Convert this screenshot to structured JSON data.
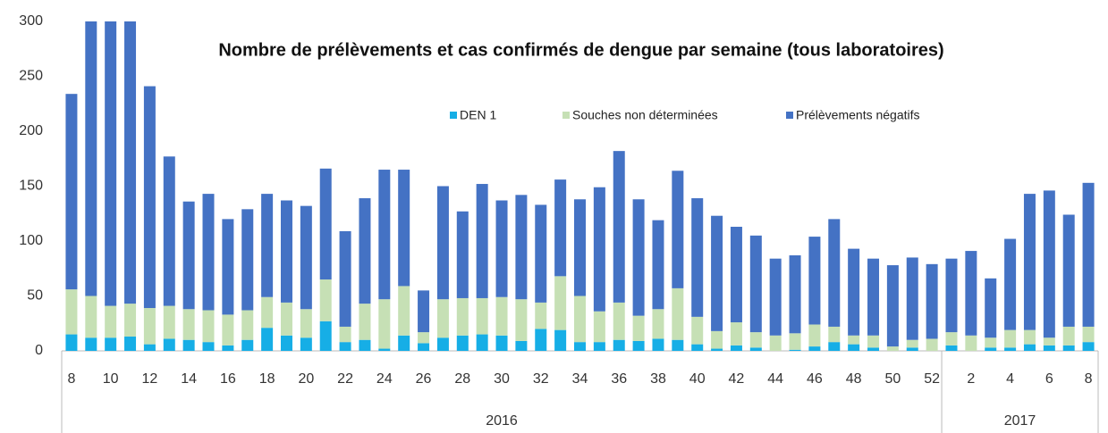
{
  "chart_data": {
    "type": "stacked_bar",
    "title": "Nombre de prélèvements et cas confirmés de dengue par semaine (tous laboratoires)",
    "categories": [
      "8",
      null,
      "10",
      null,
      "12",
      null,
      "14",
      null,
      "16",
      null,
      "18",
      null,
      "20",
      null,
      "22",
      null,
      "24",
      null,
      "26",
      null,
      "28",
      null,
      "30",
      null,
      "32",
      null,
      "34",
      null,
      "36",
      null,
      "38",
      null,
      "40",
      null,
      "42",
      null,
      "44",
      null,
      "46",
      null,
      "48",
      null,
      "50",
      null,
      "52",
      null,
      "2",
      null,
      "4",
      null,
      "6",
      null,
      "8"
    ],
    "groups": [
      {
        "label": "2016",
        "count": 45
      },
      {
        "label": "2017",
        "count": 8
      }
    ],
    "series": [
      {
        "name": "DEN 1",
        "color": "#16aee6",
        "values": [
          15,
          12,
          12,
          13,
          6,
          11,
          10,
          8,
          5,
          10,
          21,
          14,
          12,
          27,
          8,
          10,
          2,
          14,
          7,
          12,
          14,
          15,
          14,
          9,
          20,
          19,
          8,
          8,
          10,
          9,
          11,
          10,
          6,
          2,
          5,
          3,
          0,
          1,
          4,
          8,
          6,
          3,
          0,
          3,
          0,
          5,
          0,
          3,
          3,
          6,
          5,
          5,
          8
        ]
      },
      {
        "name": "Souches non déterminées",
        "color": "#c6e0b5",
        "values": [
          41,
          38,
          29,
          30,
          33,
          30,
          28,
          29,
          28,
          27,
          28,
          30,
          26,
          38,
          14,
          33,
          45,
          45,
          10,
          35,
          34,
          33,
          35,
          38,
          24,
          49,
          42,
          28,
          34,
          23,
          27,
          47,
          25,
          16,
          21,
          14,
          14,
          15,
          20,
          14,
          8,
          11,
          4,
          7,
          11,
          12,
          14,
          9,
          16,
          13,
          7,
          17,
          14
        ]
      },
      {
        "name": "Prélèvements négatifs",
        "color": "#4472c4",
        "values": [
          178,
          250,
          259,
          257,
          202,
          136,
          98,
          106,
          87,
          92,
          94,
          93,
          94,
          101,
          87,
          96,
          118,
          106,
          38,
          103,
          79,
          104,
          88,
          95,
          89,
          88,
          88,
          113,
          138,
          106,
          81,
          107,
          108,
          105,
          87,
          88,
          70,
          71,
          80,
          98,
          79,
          70,
          74,
          75,
          68,
          67,
          77,
          54,
          83,
          124,
          134,
          102,
          131
        ]
      }
    ],
    "ylim": [
      0,
      300
    ],
    "yticks": [
      0,
      50,
      100,
      150,
      200,
      250,
      300
    ]
  }
}
